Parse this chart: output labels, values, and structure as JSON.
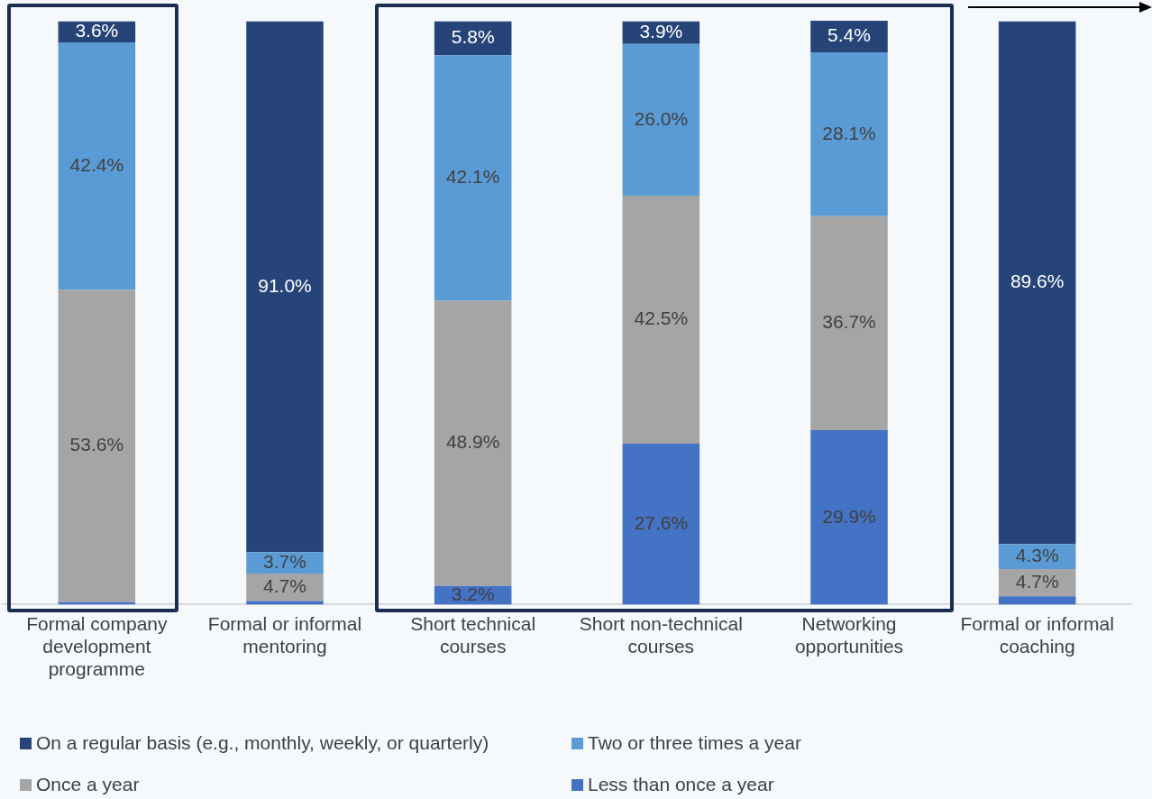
{
  "chart_data": {
    "type": "bar",
    "stacked": true,
    "legend": "bottom",
    "categories": [
      "Formal company development programme",
      "Formal or informal mentoring",
      "Short technical courses",
      "Short non-technical courses",
      "Networking opportunities",
      "Formal or informal coaching"
    ],
    "series": [
      {
        "name": "Less than once a year",
        "color": "#4472c4",
        "values": [
          0.4,
          0.6,
          3.2,
          27.6,
          29.9,
          1.4
        ],
        "value_labels": [
          null,
          null,
          "3.2%",
          "27.6%",
          "29.9%",
          null
        ]
      },
      {
        "name": "Once a year",
        "color": "#a5a5a5",
        "values": [
          53.6,
          4.7,
          48.9,
          42.5,
          36.7,
          4.7
        ],
        "value_labels": [
          "53.6%",
          "4.7%",
          "48.9%",
          "42.5%",
          "36.7%",
          "4.7%"
        ]
      },
      {
        "name": "Two or three times a year",
        "color": "#5b9bd5",
        "values": [
          42.4,
          3.7,
          42.1,
          26.0,
          28.1,
          4.3
        ],
        "value_labels": [
          "42.4%",
          "3.7%",
          "42.1%",
          "26.0%",
          "28.1%",
          "4.3%"
        ]
      },
      {
        "name": "On a regular basis (e.g., monthly, weekly, or quarterly)",
        "color": "#264478",
        "values": [
          3.6,
          91.0,
          5.8,
          3.9,
          5.4,
          89.6
        ],
        "value_labels": [
          "3.6%",
          "91.0%",
          "5.8%",
          "3.9%",
          "5.4%",
          "89.6%"
        ]
      }
    ]
  }
}
